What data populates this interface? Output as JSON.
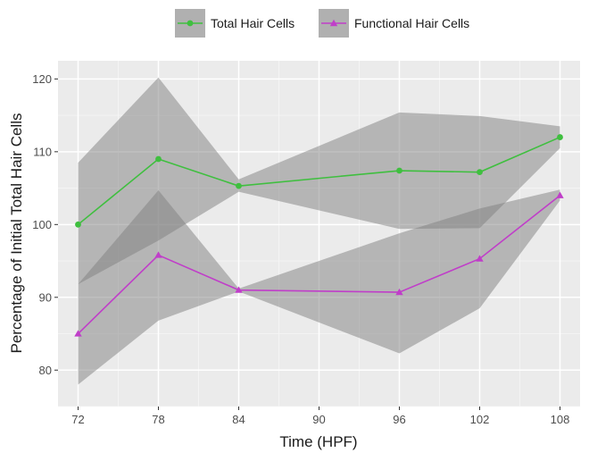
{
  "chart_data": {
    "type": "line",
    "xlabel": "Time (HPF)",
    "ylabel": "Percentage of Initial Total Hair Cells",
    "x": [
      72,
      78,
      84,
      96,
      102,
      108
    ],
    "x_ticks": [
      72,
      78,
      84,
      90,
      96,
      102,
      108
    ],
    "x_range": [
      70.5,
      109.5
    ],
    "y_ticks": [
      80,
      90,
      100,
      110,
      120
    ],
    "y_range": [
      75,
      122.5
    ],
    "grid": true,
    "legend_position": "top",
    "series": [
      {
        "name": "Total Hair Cells",
        "color": "#3fbf3f",
        "marker": "circle",
        "values": [
          100,
          109,
          105.3,
          107.4,
          107.2,
          112
        ],
        "ribbon_lower": [
          91.8,
          97.8,
          104.5,
          99.4,
          99.5,
          110.5
        ],
        "ribbon_upper": [
          108.5,
          120.2,
          106.2,
          115.4,
          114.9,
          113.5
        ]
      },
      {
        "name": "Functional Hair Cells",
        "color": "#c03ec9",
        "marker": "triangle",
        "values": [
          85,
          95.8,
          91,
          90.7,
          95.3,
          104
        ],
        "ribbon_lower": [
          78,
          86.8,
          90.8,
          82.3,
          88.5,
          103.3
        ],
        "ribbon_upper": [
          91.8,
          104.7,
          91.2,
          98.8,
          102.2,
          104.8
        ]
      }
    ]
  }
}
